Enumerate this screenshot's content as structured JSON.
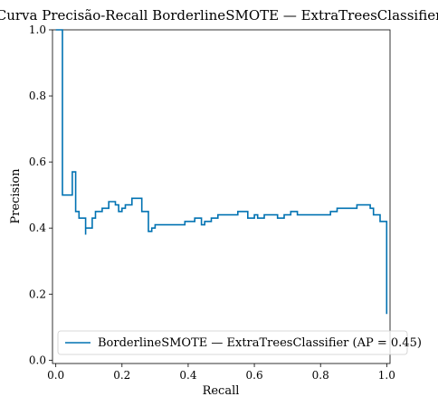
{
  "chart_data": {
    "type": "line",
    "title": "Curva Precisão-Recall BorderlineSMOTE — ExtraTreesClassifier",
    "xlabel": "Recall",
    "ylabel": "Precision",
    "xlim": [
      -0.01,
      1.01
    ],
    "ylim": [
      -0.01,
      1.0
    ],
    "xticks": [
      0.0,
      0.2,
      0.4,
      0.6,
      0.8,
      1.0
    ],
    "xtick_labels": [
      "0.0",
      "0.2",
      "0.4",
      "0.6",
      "0.8",
      "1.0"
    ],
    "yticks": [
      0.0,
      0.2,
      0.4,
      0.6,
      0.8,
      1.0
    ],
    "ytick_labels": [
      "0.0",
      "0.2",
      "0.4",
      "0.6",
      "0.8",
      "1.0"
    ],
    "grid": false,
    "legend_position": "lower-right",
    "series": [
      {
        "name": "BorderlineSMOTE — ExtraTreesClassifier (AP = 0.45)",
        "color": "#0072b2",
        "drawstyle": "steps-post",
        "x": [
          0.0,
          0.01,
          0.02,
          0.03,
          0.03,
          0.05,
          0.06,
          0.06,
          0.07,
          0.08,
          0.09,
          0.09,
          0.1,
          0.11,
          0.12,
          0.14,
          0.15,
          0.16,
          0.18,
          0.19,
          0.2,
          0.21,
          0.23,
          0.24,
          0.26,
          0.28,
          0.29,
          0.3,
          0.31,
          0.33,
          0.35,
          0.37,
          0.39,
          0.4,
          0.42,
          0.44,
          0.45,
          0.47,
          0.49,
          0.51,
          0.53,
          0.55,
          0.57,
          0.58,
          0.6,
          0.61,
          0.63,
          0.65,
          0.67,
          0.69,
          0.71,
          0.73,
          0.75,
          0.77,
          0.79,
          0.81,
          0.83,
          0.85,
          0.87,
          0.89,
          0.91,
          0.93,
          0.95,
          0.96,
          0.98,
          1.0
        ],
        "y": [
          1.0,
          1.0,
          0.5,
          0.5,
          0.5,
          0.57,
          0.57,
          0.45,
          0.43,
          0.43,
          0.38,
          0.4,
          0.4,
          0.43,
          0.45,
          0.46,
          0.46,
          0.48,
          0.47,
          0.45,
          0.46,
          0.47,
          0.49,
          0.49,
          0.45,
          0.39,
          0.4,
          0.41,
          0.41,
          0.41,
          0.41,
          0.41,
          0.42,
          0.42,
          0.43,
          0.41,
          0.42,
          0.43,
          0.44,
          0.44,
          0.44,
          0.45,
          0.45,
          0.43,
          0.44,
          0.43,
          0.44,
          0.44,
          0.43,
          0.44,
          0.45,
          0.44,
          0.44,
          0.44,
          0.44,
          0.44,
          0.45,
          0.46,
          0.46,
          0.46,
          0.47,
          0.47,
          0.46,
          0.44,
          0.42,
          0.14
        ]
      }
    ]
  }
}
